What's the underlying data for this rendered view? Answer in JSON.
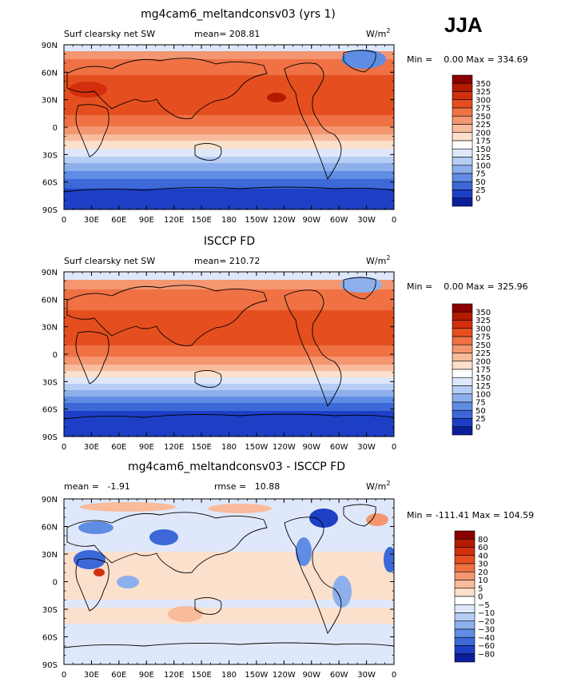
{
  "season": "JJA",
  "chart_data": [
    {
      "type": "heatmap",
      "title": "mg4cam6_meltandconsv03 (yrs 1)",
      "subtitle": "Surf clearsky net SW",
      "stat_text": "mean= 208.81",
      "units": "W/m2",
      "min_text": "Min =    0.00 Max = 334.69",
      "min": 0.0,
      "max": 334.69,
      "mean": 208.81,
      "xticks": [
        "0",
        "30E",
        "60E",
        "90E",
        "120E",
        "150E",
        "180",
        "150W",
        "120W",
        "90W",
        "60W",
        "30W",
        "0"
      ],
      "yticks": [
        "90N",
        "60N",
        "30N",
        "0",
        "30S",
        "60S",
        "90S"
      ],
      "colorbar": {
        "labels": [
          "350",
          "325",
          "300",
          "275",
          "250",
          "225",
          "200",
          "175",
          "150",
          "125",
          "100",
          "75",
          "50",
          "25",
          "0"
        ],
        "colors": [
          "#8b0000",
          "#b31b00",
          "#d32f0d",
          "#e54f1f",
          "#ef7144",
          "#f49670",
          "#f8bb9c",
          "#fbe0cc",
          "#ffffff",
          "#dfe8fb",
          "#b6cdf4",
          "#8db0ec",
          "#5f8de3",
          "#3c68d8",
          "#1d3fc5",
          "#0c1e9b"
        ]
      }
    },
    {
      "type": "heatmap",
      "title": "ISCCP FD",
      "subtitle": "Surf clearsky net SW",
      "stat_text": "mean= 210.72",
      "units": "W/m2",
      "min_text": "Min =    0.00 Max = 325.96",
      "min": 0.0,
      "max": 325.96,
      "mean": 210.72,
      "xticks": [
        "0",
        "30E",
        "60E",
        "90E",
        "120E",
        "150E",
        "180",
        "150W",
        "120W",
        "90W",
        "60W",
        "30W",
        "0"
      ],
      "yticks": [
        "90N",
        "60N",
        "30N",
        "0",
        "30S",
        "60S",
        "90S"
      ],
      "colorbar": {
        "labels": [
          "350",
          "325",
          "300",
          "275",
          "250",
          "225",
          "200",
          "175",
          "150",
          "125",
          "100",
          "75",
          "50",
          "25",
          "0"
        ],
        "colors": [
          "#8b0000",
          "#b31b00",
          "#d32f0d",
          "#e54f1f",
          "#ef7144",
          "#f49670",
          "#f8bb9c",
          "#fbe0cc",
          "#ffffff",
          "#dfe8fb",
          "#b6cdf4",
          "#8db0ec",
          "#5f8de3",
          "#3c68d8",
          "#1d3fc5",
          "#0c1e9b"
        ]
      }
    },
    {
      "type": "heatmap",
      "title": "mg4cam6_meltandconsv03 - ISCCP FD",
      "stat_text": "mean =   -1.91",
      "rmse_text": "rmse =   10.88",
      "units": "W/m2",
      "min_text": "Min = -111.41 Max = 104.59",
      "min": -111.41,
      "max": 104.59,
      "mean": -1.91,
      "rmse": 10.88,
      "xticks": [
        "0",
        "30E",
        "60E",
        "90E",
        "120E",
        "150E",
        "180",
        "150W",
        "120W",
        "90W",
        "60W",
        "30W",
        "0"
      ],
      "yticks": [
        "90N",
        "60N",
        "30N",
        "0",
        "30S",
        "60S",
        "90S"
      ],
      "colorbar": {
        "labels": [
          "80",
          "60",
          "40",
          "30",
          "20",
          "10",
          "5",
          "0",
          "−5",
          "−10",
          "−20",
          "−30",
          "−40",
          "−60",
          "−80"
        ],
        "colors": [
          "#8b0000",
          "#b31b00",
          "#d32f0d",
          "#e54f1f",
          "#ef7144",
          "#f49670",
          "#f8bb9c",
          "#fbe0cc",
          "#ffffff",
          "#dfe8fb",
          "#b6cdf4",
          "#8db0ec",
          "#5f8de3",
          "#3c68d8",
          "#1d3fc5",
          "#0c1e9b"
        ]
      }
    }
  ]
}
